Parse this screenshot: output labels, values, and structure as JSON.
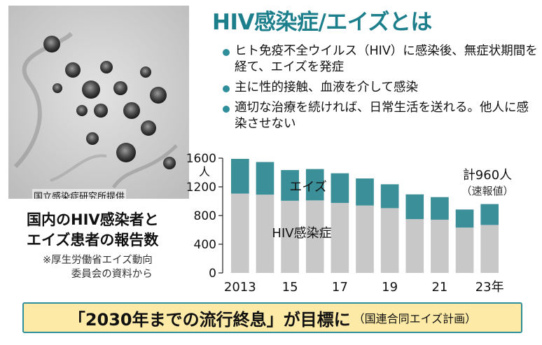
{
  "header": {
    "title": "HIV感染症/エイズとは",
    "bullets": [
      "ヒト免疫不全ウイルス（HIV）に感染後、無症状期間を経て、エイズを発症",
      "主に性的接触、血液を介して感染",
      "適切な治療を続ければ、日常生活を送れる。他人に感染させない"
    ]
  },
  "photo": {
    "credit": "国立感染症研究所提供"
  },
  "chart_label": {
    "title_line1": "国内のHIV感染者と",
    "title_line2": "エイズ患者の報告数",
    "source_line1": "※厚生労働省エイズ動向",
    "source_line2": "委員会の資料から"
  },
  "chart_data": {
    "type": "bar",
    "stacked": true,
    "categories": [
      "2013",
      "2014",
      "2015",
      "2016",
      "2017",
      "2018",
      "2019",
      "2020",
      "2021",
      "2022",
      "2023"
    ],
    "x_tick_labels": [
      "2013",
      "",
      "15",
      "",
      "17",
      "",
      "19",
      "",
      "21",
      "",
      "23年"
    ],
    "series": [
      {
        "name": "HIV感染症",
        "color": "#c8c8c8",
        "values": [
          1106,
          1091,
          1006,
          1011,
          976,
          940,
          903,
          750,
          742,
          632,
          669
        ]
      },
      {
        "name": "エイズ",
        "color": "#3b8f99",
        "values": [
          484,
          455,
          428,
          437,
          413,
          377,
          333,
          345,
          315,
          252,
          291
        ]
      }
    ],
    "ylim": [
      0,
      1600
    ],
    "yticks": [
      0,
      400,
      800,
      1200,
      1600
    ],
    "y_unit": "人",
    "annotation_line1": "計960人",
    "annotation_line2": "（速報値）"
  },
  "banner": {
    "main": "「2030年までの流行終息」が目標に",
    "sub": "（国連合同エイズ計画）"
  },
  "colors": {
    "accent": "#1e7f8c",
    "bar_hiv": "#c8c8c8",
    "bar_aids": "#3b8f99",
    "banner_bg": "#fdeaa6"
  }
}
